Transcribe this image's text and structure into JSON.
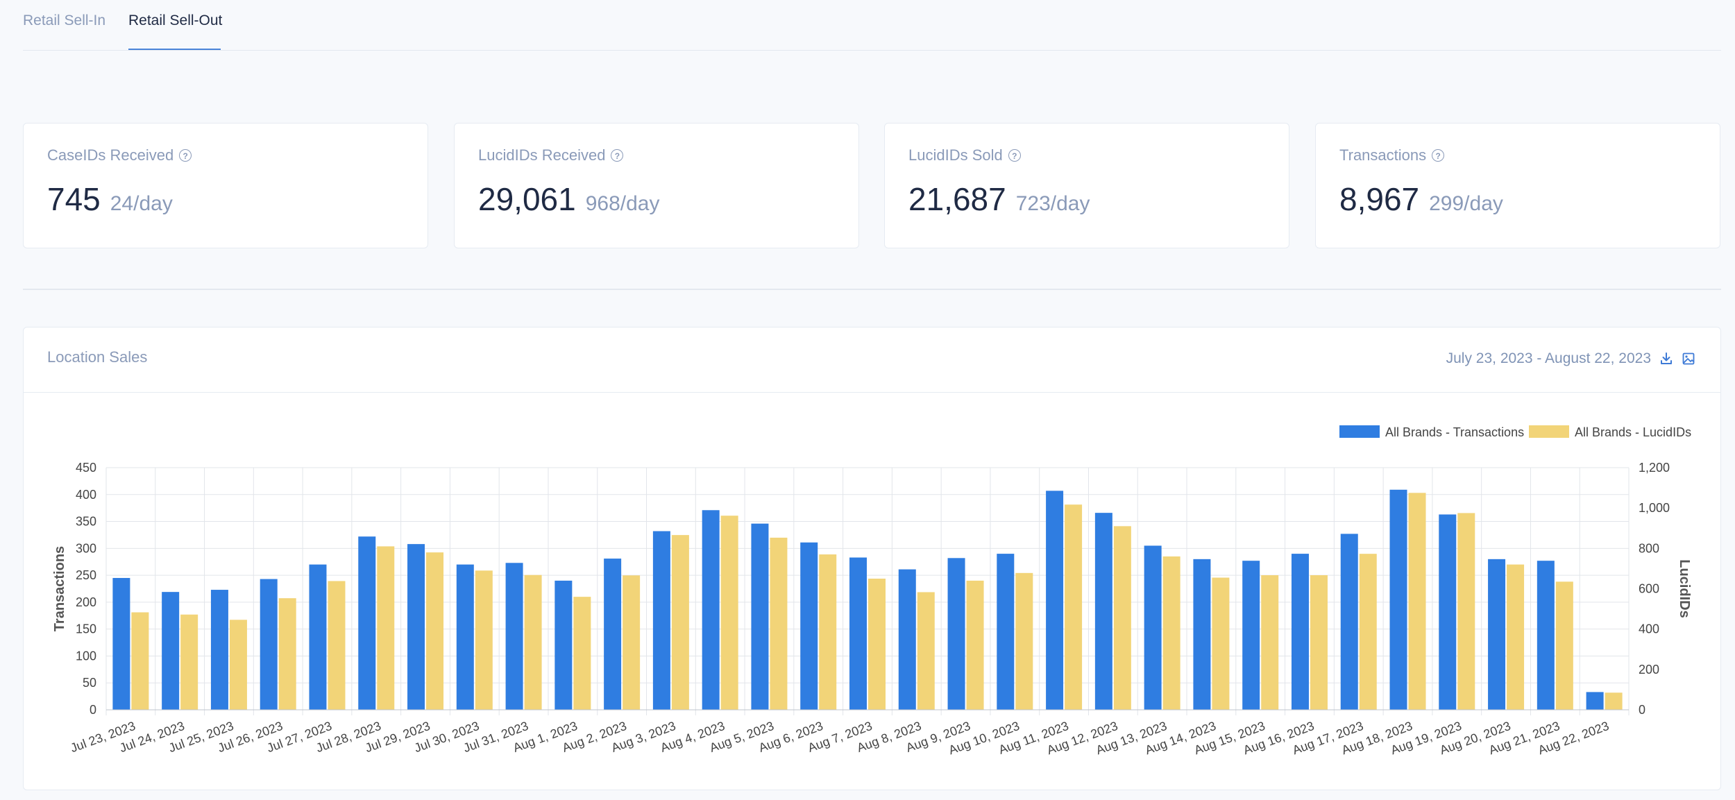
{
  "tabs": [
    {
      "label": "Retail Sell-In"
    },
    {
      "label": "Retail Sell-Out"
    }
  ],
  "cards": [
    {
      "title": "CaseIDs Received",
      "value": "745",
      "rate": "24/day"
    },
    {
      "title": "LucidIDs Received",
      "value": "29,061",
      "rate": "968/day"
    },
    {
      "title": "LucidIDs Sold",
      "value": "21,687",
      "rate": "723/day"
    },
    {
      "title": "Transactions",
      "value": "8,967",
      "rate": "299/day"
    }
  ],
  "panel": {
    "title": "Location Sales",
    "date_range": "July 23, 2023 - August 22, 2023",
    "download_icon": "download-icon",
    "image_icon": "image-icon"
  },
  "colors": {
    "transactions": "#2f7de1",
    "lucidids": "#f2d478"
  },
  "chart_data": {
    "type": "bar",
    "categories": [
      "Jul 23, 2023",
      "Jul 24, 2023",
      "Jul 25, 2023",
      "Jul 26, 2023",
      "Jul 27, 2023",
      "Jul 28, 2023",
      "Jul 29, 2023",
      "Jul 30, 2023",
      "Jul 31, 2023",
      "Aug 1, 2023",
      "Aug 2, 2023",
      "Aug 3, 2023",
      "Aug 4, 2023",
      "Aug 5, 2023",
      "Aug 6, 2023",
      "Aug 7, 2023",
      "Aug 8, 2023",
      "Aug 9, 2023",
      "Aug 10, 2023",
      "Aug 11, 2023",
      "Aug 12, 2023",
      "Aug 13, 2023",
      "Aug 14, 2023",
      "Aug 15, 2023",
      "Aug 16, 2023",
      "Aug 17, 2023",
      "Aug 18, 2023",
      "Aug 19, 2023",
      "Aug 20, 2023",
      "Aug 21, 2023",
      "Aug 22, 2023"
    ],
    "series": [
      {
        "name": "All Brands - Transactions",
        "axis": "left",
        "values": [
          245,
          219,
          223,
          243,
          270,
          322,
          308,
          270,
          273,
          240,
          281,
          332,
          371,
          346,
          311,
          283,
          261,
          282,
          290,
          407,
          366,
          305,
          280,
          277,
          290,
          327,
          409,
          363,
          280,
          277,
          33
        ]
      },
      {
        "name": "All Brands - LucidIDs",
        "axis": "right",
        "values": [
          483,
          472,
          446,
          553,
          638,
          810,
          780,
          690,
          668,
          560,
          666,
          866,
          962,
          853,
          770,
          650,
          583,
          640,
          678,
          1017,
          910,
          760,
          655,
          667,
          667,
          773,
          1075,
          975,
          720,
          635,
          85
        ]
      }
    ],
    "ylabel": "Transactions",
    "y2label": "LucidIDs",
    "ylim": [
      0,
      450
    ],
    "y2lim": [
      0,
      1200
    ],
    "yticks": [
      "0",
      "50",
      "100",
      "150",
      "200",
      "250",
      "300",
      "350",
      "400",
      "450"
    ],
    "y2ticks": [
      "0",
      "200",
      "400",
      "600",
      "800",
      "1,000",
      "1,200"
    ],
    "legend_position": "top-right",
    "grid": true
  }
}
